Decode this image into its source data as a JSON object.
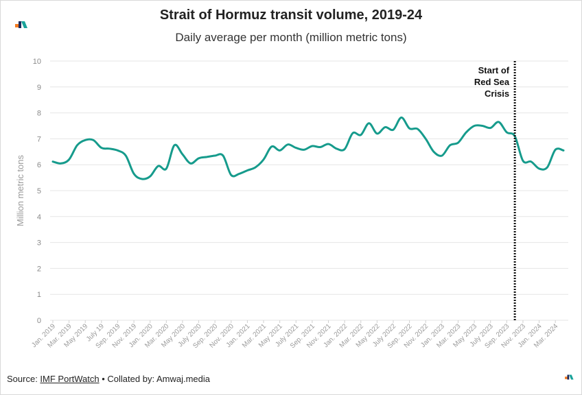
{
  "header": {
    "title": "Strait of Hormuz transit volume, 2019-24",
    "subtitle": "Daily average per month (million metric tons)"
  },
  "footer": {
    "source_prefix": "Source: ",
    "source_link": "IMF PortWatch",
    "collated": " • Collated by: Amwaj.media"
  },
  "colors": {
    "line": "#169b8c",
    "grid": "#e6e6e6",
    "logo_orange": "#f47b20",
    "logo_teal": "#1aa39a",
    "logo_navy": "#1d2a5c"
  },
  "icons": {
    "logo": "amwaj-logo-icon"
  },
  "chart_data": {
    "type": "line",
    "title": "Strait of Hormuz transit volume, 2019-24",
    "subtitle": "Daily average per month (million metric tons)",
    "ylabel": "Million metric tons",
    "xlabel": "",
    "ylim": [
      0,
      10
    ],
    "yticks": [
      0,
      1,
      2,
      3,
      4,
      5,
      6,
      7,
      8,
      9,
      10
    ],
    "grid": true,
    "x_tick_labels": [
      "Jan. 2019",
      "Mar. 2019",
      "May 2019",
      "July 19",
      "Sep. 2019",
      "Nov. 2019",
      "Jan. 2020",
      "Mar. 2020",
      "May 2020",
      "July 2020",
      "Sep. 2020",
      "Nov. 2020",
      "Jan. 2021",
      "Mar. 2021",
      "May 2021",
      "July 2021",
      "Sep. 2021",
      "Nov. 2021",
      "Jan. 2022",
      "Mar. 2022",
      "May 2022",
      "July 2022",
      "Sep. 2022",
      "Nov. 2022",
      "Jan. 2023",
      "Mar. 2023",
      "May 2023",
      "July 2023",
      "Sep. 2023",
      "Nov. 2023",
      "Jan. 2024",
      "Mar. 2024"
    ],
    "series": [
      {
        "name": "Transit volume",
        "values": [
          6.12,
          6.05,
          6.2,
          6.75,
          6.95,
          6.95,
          6.65,
          6.62,
          6.55,
          6.35,
          5.65,
          5.45,
          5.55,
          5.95,
          5.85,
          6.75,
          6.4,
          6.05,
          6.25,
          6.3,
          6.35,
          6.35,
          5.6,
          5.65,
          5.78,
          5.9,
          6.2,
          6.7,
          6.55,
          6.78,
          6.65,
          6.58,
          6.72,
          6.68,
          6.8,
          6.62,
          6.6,
          7.22,
          7.15,
          7.6,
          7.2,
          7.45,
          7.35,
          7.82,
          7.4,
          7.38,
          7.0,
          6.5,
          6.35,
          6.75,
          6.85,
          7.25,
          7.5,
          7.5,
          7.42,
          7.65,
          7.25,
          7.1,
          6.15,
          6.12,
          5.85,
          5.9,
          6.58,
          6.55
        ]
      }
    ],
    "annotations": [
      {
        "x_index": 57,
        "lines": [
          "Start of",
          "Red Sea",
          "Crisis"
        ]
      }
    ]
  }
}
